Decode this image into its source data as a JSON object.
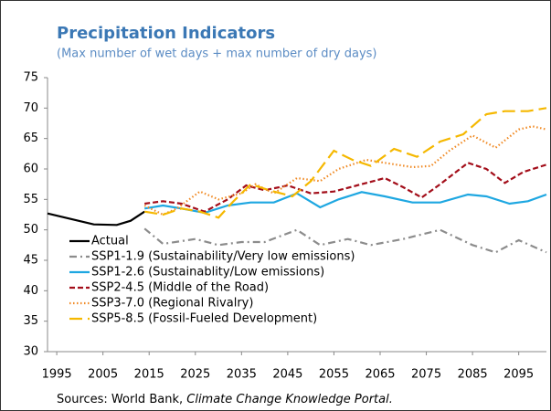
{
  "chart_data": {
    "type": "line",
    "title": "Precipitation Indicators",
    "subtitle": "(Max number of wet days + max number of dry days)",
    "source": "Sources: World Bank,",
    "source_italic": "Climate Change Knowledge Portal.",
    "xlim": [
      1993,
      2101
    ],
    "xticks": [
      1995,
      2005,
      2015,
      2025,
      2035,
      2045,
      2055,
      2065,
      2075,
      2085,
      2095
    ],
    "ylim": [
      30,
      75
    ],
    "yticks": [
      30,
      35,
      40,
      45,
      50,
      55,
      60,
      65,
      70,
      75
    ],
    "grid": false,
    "legend": "lower left",
    "series": [
      {
        "name": "Actual",
        "color": "#000000",
        "style": "solid",
        "x": [
          1993,
          1998,
          2003,
          2008,
          2011,
          2014
        ],
        "values": [
          52.7,
          51.8,
          50.9,
          50.8,
          51.5,
          53.0
        ]
      },
      {
        "name": "SSP1-1.9 (Sustainability/Very low emissions)",
        "color": "#8c8c8c",
        "style": "dashdot",
        "x": [
          2014,
          2018,
          2025,
          2030,
          2035,
          2040,
          2047,
          2052,
          2058,
          2063,
          2070,
          2078,
          2085,
          2090,
          2095,
          2101
        ],
        "values": [
          50.2,
          47.7,
          48.5,
          47.5,
          48,
          48,
          50,
          47.5,
          48.5,
          47.5,
          48.5,
          50,
          47.5,
          46.3,
          48.3,
          46.3
        ]
      },
      {
        "name": "SSP1-2.6 (Sustainablity/Low emissions)",
        "color": "#1ea7e1",
        "style": "solid",
        "x": [
          2014,
          2018,
          2022,
          2027,
          2032,
          2037,
          2042,
          2047,
          2052,
          2056,
          2061,
          2066,
          2072,
          2078,
          2084,
          2088,
          2093,
          2097,
          2101
        ],
        "values": [
          53.5,
          54,
          53.5,
          52.8,
          54,
          54.5,
          54.5,
          56,
          53.7,
          55,
          56.2,
          55.5,
          54.5,
          54.5,
          55.8,
          55.5,
          54.3,
          54.7,
          55.8
        ]
      },
      {
        "name": "SSP2-4.5 (Middle of the Road)",
        "color": "#a30e1a",
        "style": "dashed",
        "x": [
          2014,
          2018,
          2022,
          2027,
          2032,
          2036,
          2040,
          2045,
          2050,
          2055,
          2060,
          2066,
          2070,
          2074,
          2078,
          2084,
          2088,
          2092,
          2096,
          2101
        ],
        "values": [
          54.3,
          54.7,
          54.3,
          53,
          55,
          57.3,
          56.5,
          57.3,
          56,
          56.3,
          57.3,
          58.5,
          57,
          55.3,
          57.5,
          61,
          60,
          57.7,
          59.5,
          60.7
        ]
      },
      {
        "name": "SSP3-7.0 (Regional Rivalry)",
        "color": "#f08a24",
        "style": "dotted",
        "x": [
          2014,
          2018,
          2021,
          2026,
          2030,
          2035,
          2038,
          2042,
          2047,
          2052,
          2056,
          2062,
          2066,
          2072,
          2076,
          2080,
          2085,
          2090,
          2095,
          2098,
          2101
        ],
        "values": [
          54,
          52.5,
          53.5,
          56.3,
          55,
          56,
          57.5,
          56,
          58.5,
          58,
          60,
          61.5,
          61,
          60.3,
          60.5,
          63,
          65.5,
          63.5,
          66.5,
          67,
          66.5
        ]
      },
      {
        "name": "SSP5-8.5 (Fossil-Fueled Development)",
        "color": "#f5b800",
        "style": "longdash",
        "x": [
          2014,
          2018,
          2022,
          2026,
          2030,
          2033,
          2037,
          2041,
          2046,
          2050,
          2055,
          2059,
          2063,
          2068,
          2073,
          2078,
          2083,
          2088,
          2092,
          2097,
          2101
        ],
        "values": [
          53,
          52.5,
          53.5,
          53,
          52,
          54.5,
          57.5,
          56.5,
          55.5,
          58,
          63,
          61.5,
          60.5,
          63.3,
          62,
          64.5,
          65.7,
          69,
          69.5,
          69.5,
          70
        ]
      }
    ]
  }
}
